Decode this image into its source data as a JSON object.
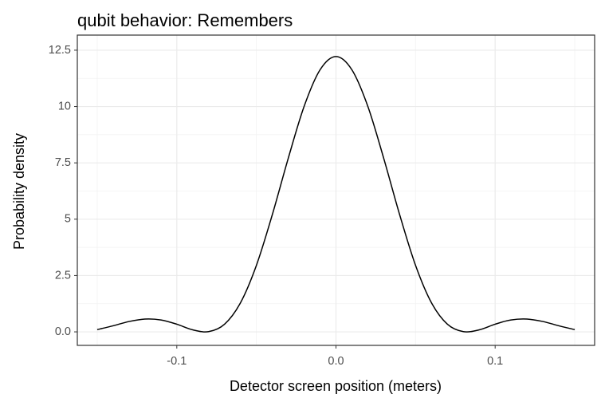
{
  "chart_data": {
    "type": "line",
    "title": "qubit behavior: Remembers",
    "x_label": "Detector screen position (meters)",
    "y_label": "Probability density",
    "x": [
      -0.15,
      -0.14,
      -0.13,
      -0.12,
      -0.11,
      -0.1,
      -0.09,
      -0.08,
      -0.07,
      -0.06,
      -0.05,
      -0.04,
      -0.03,
      -0.02,
      -0.01,
      0,
      0.01,
      0.02,
      0.03,
      0.04,
      0.05,
      0.06,
      0.07,
      0.08,
      0.09,
      0.1,
      0.11,
      0.12,
      0.13,
      0.14,
      0.15
    ],
    "series": [
      {
        "color": "#000000",
        "values": [
          0.1,
          0.27,
          0.46,
          0.57,
          0.53,
          0.34,
          0.09,
          0.01,
          0.34,
          1.29,
          2.95,
          5.2,
          7.7,
          10.01,
          11.63,
          12.22,
          11.63,
          10.01,
          7.7,
          5.2,
          2.95,
          1.29,
          0.34,
          0.01,
          0.09,
          0.34,
          0.53,
          0.57,
          0.46,
          0.27,
          0.1
        ]
      }
    ],
    "xlim": [
      -0.1625,
      0.1625
    ],
    "xticks": [
      -0.1,
      {
        "value": 0,
        "label": "0.0"
      },
      0.1
    ],
    "ylim": [
      -0.6,
      13.17
    ],
    "yticks": [
      {
        "value": 0,
        "label": "0.0"
      },
      2.5,
      5,
      7.5,
      10,
      12.5
    ],
    "grid": true
  }
}
